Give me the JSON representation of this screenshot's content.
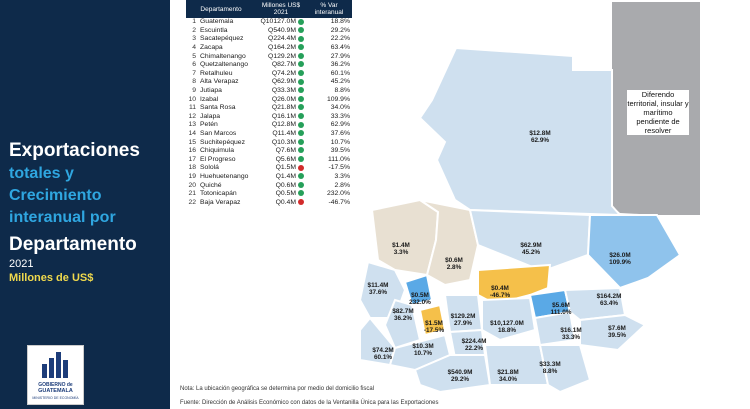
{
  "title": {
    "line1": "Exportaciones",
    "line2": "totales y",
    "line3": "Crecimiento",
    "line4": "interanual por",
    "line5": "Departamento",
    "year": "2021",
    "units": "Millones de US$"
  },
  "logo": {
    "line1": "GOBIERNO de",
    "line2": "GUATEMALA",
    "line3": "MINISTERIO DE ECONOMÍA"
  },
  "table": {
    "headers": [
      "Departamento",
      "Millones US$ 2021",
      "% Var interanual"
    ],
    "rows": [
      {
        "n": "1",
        "name": "Guatemala",
        "value": "Q10127.0M",
        "pct": "18.8%",
        "trend": "up"
      },
      {
        "n": "2",
        "name": "Escuintla",
        "value": "Q540.9M",
        "pct": "29.2%",
        "trend": "up"
      },
      {
        "n": "3",
        "name": "Sacatepéquez",
        "value": "Q224.4M",
        "pct": "22.2%",
        "trend": "up"
      },
      {
        "n": "4",
        "name": "Zacapa",
        "value": "Q164.2M",
        "pct": "63.4%",
        "trend": "up"
      },
      {
        "n": "5",
        "name": "Chimaltenango",
        "value": "Q129.2M",
        "pct": "27.9%",
        "trend": "up"
      },
      {
        "n": "6",
        "name": "Quetzaltenango",
        "value": "Q82.7M",
        "pct": "36.2%",
        "trend": "up"
      },
      {
        "n": "7",
        "name": "Retalhuleu",
        "value": "Q74.2M",
        "pct": "60.1%",
        "trend": "up"
      },
      {
        "n": "8",
        "name": "Alta Verapaz",
        "value": "Q62.9M",
        "pct": "45.2%",
        "trend": "up"
      },
      {
        "n": "9",
        "name": "Jutiapa",
        "value": "Q33.3M",
        "pct": "8.8%",
        "trend": "up"
      },
      {
        "n": "10",
        "name": "Izabal",
        "value": "Q26.0M",
        "pct": "109.9%",
        "trend": "up"
      },
      {
        "n": "11",
        "name": "Santa Rosa",
        "value": "Q21.8M",
        "pct": "34.0%",
        "trend": "up"
      },
      {
        "n": "12",
        "name": "Jalapa",
        "value": "Q16.1M",
        "pct": "33.3%",
        "trend": "up"
      },
      {
        "n": "13",
        "name": "Petén",
        "value": "Q12.8M",
        "pct": "62.9%",
        "trend": "up"
      },
      {
        "n": "14",
        "name": "San Marcos",
        "value": "Q11.4M",
        "pct": "37.6%",
        "trend": "up"
      },
      {
        "n": "15",
        "name": "Suchitepéquez",
        "value": "Q10.3M",
        "pct": "10.7%",
        "trend": "up"
      },
      {
        "n": "16",
        "name": "Chiquimula",
        "value": "Q7.6M",
        "pct": "39.5%",
        "trend": "up"
      },
      {
        "n": "17",
        "name": "El Progreso",
        "value": "Q5.6M",
        "pct": "111.0%",
        "trend": "up"
      },
      {
        "n": "18",
        "name": "Sololá",
        "value": "Q1.5M",
        "pct": "-17.5%",
        "trend": "down"
      },
      {
        "n": "19",
        "name": "Huehuetenango",
        "value": "Q1.4M",
        "pct": "3.3%",
        "trend": "up"
      },
      {
        "n": "20",
        "name": "Quiché",
        "value": "Q0.6M",
        "pct": "2.8%",
        "trend": "up"
      },
      {
        "n": "21",
        "name": "Totonicapán",
        "value": "Q0.5M",
        "pct": "232.0%",
        "trend": "up"
      },
      {
        "n": "22",
        "name": "Baja Verapaz",
        "value": "Q0.4M",
        "pct": "-46.7%",
        "trend": "down"
      }
    ]
  },
  "map": {
    "belize_note": "Diferendo territorial, insular y marítimo pendiente de resolver",
    "labels": [
      {
        "dept": "Petén",
        "value": "$12.8M",
        "pct": "62.9%"
      },
      {
        "dept": "Huehuetenango",
        "value": "$1.4M",
        "pct": "3.3%"
      },
      {
        "dept": "Quiché",
        "value": "$0.6M",
        "pct": "2.8%"
      },
      {
        "dept": "Alta Verapaz",
        "value": "$62.9M",
        "pct": "45.2%"
      },
      {
        "dept": "Izabal",
        "value": "$26.0M",
        "pct": "109.9%"
      },
      {
        "dept": "San Marcos",
        "value": "$11.4M",
        "pct": "37.6%"
      },
      {
        "dept": "Totonicapán",
        "value": "$0.5M",
        "pct": "232.0%"
      },
      {
        "dept": "Baja Verapaz",
        "value": "$0.4M",
        "pct": "-46.7%"
      },
      {
        "dept": "El Progreso",
        "value": "$5.6M",
        "pct": "111.0%"
      },
      {
        "dept": "Zacapa",
        "value": "$164.2M",
        "pct": "63.4%"
      },
      {
        "dept": "Quetzaltenango",
        "value": "$82.7M",
        "pct": "36.2%"
      },
      {
        "dept": "Sololá",
        "value": "$1.5M",
        "pct": "-17.5%"
      },
      {
        "dept": "Chimaltenango",
        "value": "$129.2M",
        "pct": "27.9%"
      },
      {
        "dept": "Guatemala",
        "value": "$10,127.0M",
        "pct": "18.8%"
      },
      {
        "dept": "Jalapa",
        "value": "$16.1M",
        "pct": "33.3%"
      },
      {
        "dept": "Chiquimula",
        "value": "$7.6M",
        "pct": "39.5%"
      },
      {
        "dept": "Sacatepéquez",
        "value": "$224.4M",
        "pct": "22.2%"
      },
      {
        "dept": "Retalhuleu",
        "value": "$74.2M",
        "pct": "60.1%"
      },
      {
        "dept": "Suchitepéquez",
        "value": "$10.3M",
        "pct": "10.7%"
      },
      {
        "dept": "Escuintla",
        "value": "$540.9M",
        "pct": "29.2%"
      },
      {
        "dept": "Santa Rosa",
        "value": "$21.8M",
        "pct": "34.0%"
      },
      {
        "dept": "Jutiapa",
        "value": "$33.3M",
        "pct": "8.8%"
      }
    ]
  },
  "notes": {
    "note": "Nota: La ubicación geográfica se determina por medio del domicilio fiscal",
    "source": "Fuente: Dirección de Análisis Económico con datos de la Ventanilla Única para las Exportaciones"
  },
  "colors": {
    "panel": "#0e2a4a",
    "accent_blue": "#2fa6e0",
    "accent_yellow": "#f0d94d",
    "map_light": "#cfe0ef",
    "map_beige": "#e8e0d2",
    "map_strong": "#5aa9e6",
    "map_orange": "#f5c04a",
    "belize": "#a9aaad"
  }
}
